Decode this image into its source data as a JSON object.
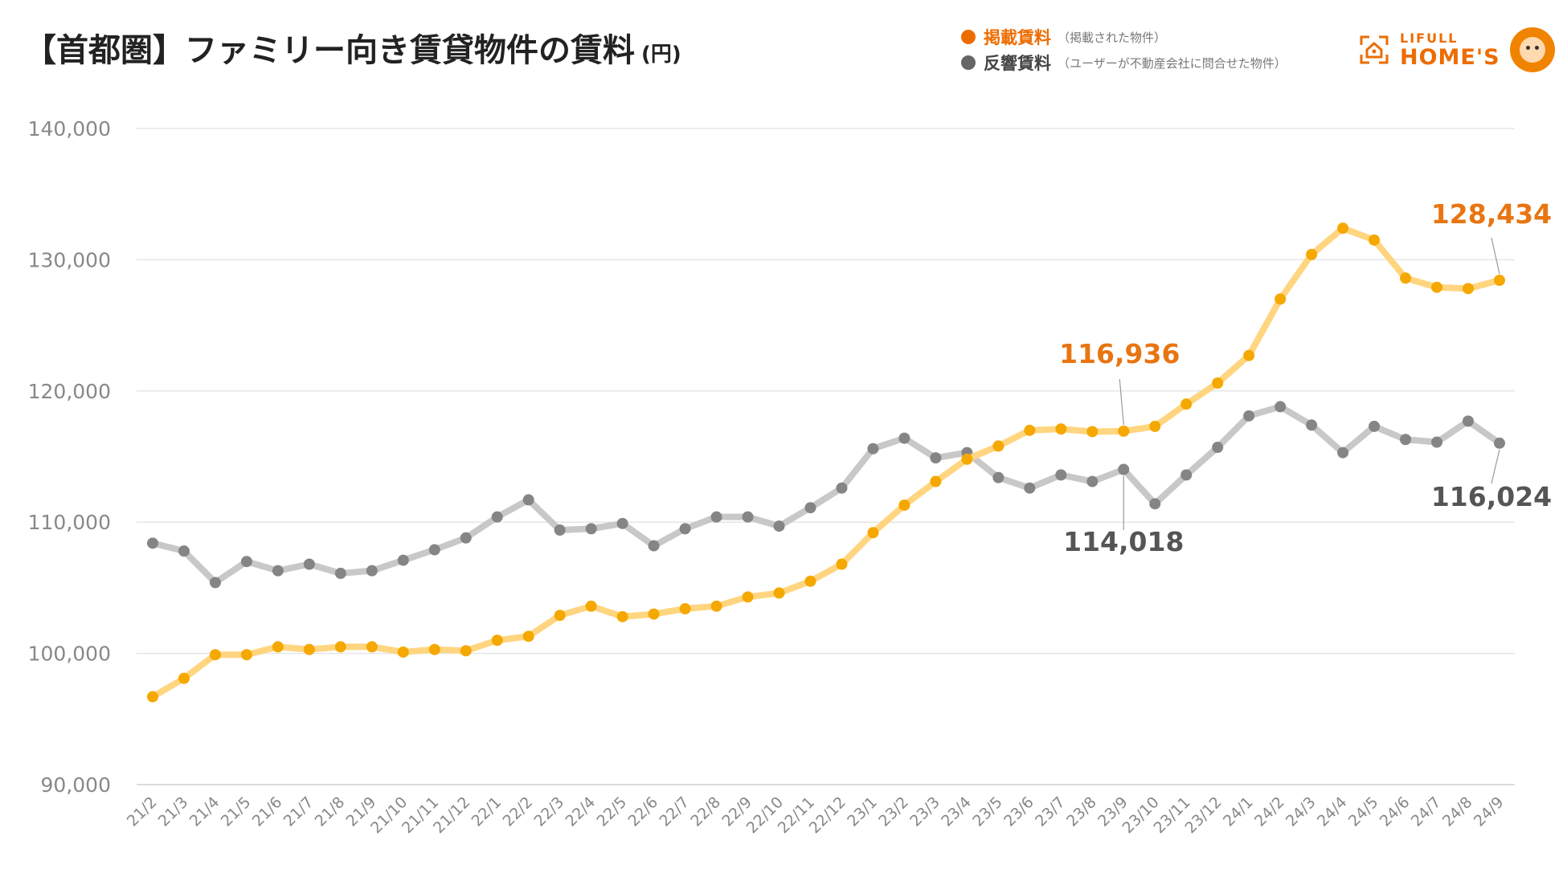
{
  "header": {
    "title": "【首都圏】ファミリー向き賃貸物件の賃料",
    "unit": "(円)"
  },
  "legend": [
    {
      "label": "掲載賃料",
      "note": "（掲載された物件）",
      "color": "#ED6C00"
    },
    {
      "label": "反響賃料",
      "note": "（ユーザーが不動産会社に問合せた物件）",
      "color": "#666666"
    }
  ],
  "logo": {
    "small": "LIFULL",
    "big": "HOME'S"
  },
  "chart_data": {
    "type": "line",
    "categories": [
      "21/2",
      "21/3",
      "21/4",
      "21/5",
      "21/6",
      "21/7",
      "21/8",
      "21/9",
      "21/10",
      "21/11",
      "21/12",
      "22/1",
      "22/2",
      "22/3",
      "22/4",
      "22/5",
      "22/6",
      "22/7",
      "22/8",
      "22/9",
      "22/10",
      "22/11",
      "22/12",
      "23/1",
      "23/2",
      "23/3",
      "23/4",
      "23/5",
      "23/6",
      "23/7",
      "23/8",
      "23/9",
      "23/10",
      "23/11",
      "23/12",
      "24/1",
      "24/2",
      "24/3",
      "24/4",
      "24/5",
      "24/6",
      "24/7",
      "24/8",
      "24/9"
    ],
    "ylim": [
      90000,
      140000
    ],
    "yticks": [
      "90,000",
      "100,000",
      "110,000",
      "120,000",
      "130,000",
      "140,000"
    ],
    "grid": true,
    "series": [
      {
        "name": "掲載賃料",
        "line_color": "#FFD57F",
        "point_color": "#F5A800",
        "label_color": "#E87511",
        "values": [
          96700,
          98100,
          99900,
          99900,
          100500,
          100300,
          100500,
          100500,
          100100,
          100300,
          100200,
          101000,
          101300,
          102900,
          103600,
          102800,
          103000,
          103400,
          103600,
          104300,
          104600,
          105500,
          106800,
          109200,
          111300,
          113100,
          114800,
          115800,
          117000,
          117100,
          116900,
          116936,
          117300,
          119000,
          120600,
          122700,
          127000,
          130400,
          132400,
          131500,
          128600,
          127900,
          127800,
          128434
        ],
        "labels": [
          {
            "index": 31,
            "text": "116,936"
          },
          {
            "index": 43,
            "text": "128,434"
          }
        ]
      },
      {
        "name": "反響賃料",
        "line_color": "#C8C8C8",
        "point_color": "#858585",
        "label_color": "#555555",
        "values": [
          108400,
          107800,
          105400,
          107000,
          106300,
          106800,
          106100,
          106300,
          107100,
          107900,
          108800,
          110400,
          111700,
          109400,
          109500,
          109900,
          108200,
          109500,
          110400,
          110400,
          109700,
          111100,
          112600,
          115600,
          116400,
          114900,
          115300,
          113400,
          112600,
          113600,
          113100,
          114018,
          111400,
          113600,
          115700,
          118100,
          118800,
          117400,
          115300,
          117300,
          116300,
          116100,
          117700,
          116024
        ],
        "labels": [
          {
            "index": 31,
            "text": "114,018"
          },
          {
            "index": 43,
            "text": "116,024"
          }
        ]
      }
    ]
  }
}
